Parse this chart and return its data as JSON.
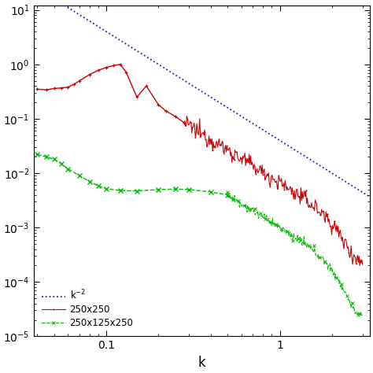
{
  "title": "",
  "xlabel": "k",
  "ylabel": "",
  "xlim": [
    0.038,
    3.3
  ],
  "ylim": [
    1e-05,
    12
  ],
  "ref_amplitude": 0.04,
  "ref_exponent": -2,
  "legend_labels": [
    "250x250",
    "250x125x250",
    "k$^{-2}$"
  ],
  "red_color": "#cc0000",
  "green_color": "#00bb00",
  "blue_color": "#2222bb",
  "marker_size_red": 3.5,
  "marker_size_green": 4.5,
  "figsize": [
    4.74,
    4.74
  ],
  "dpi": 100
}
